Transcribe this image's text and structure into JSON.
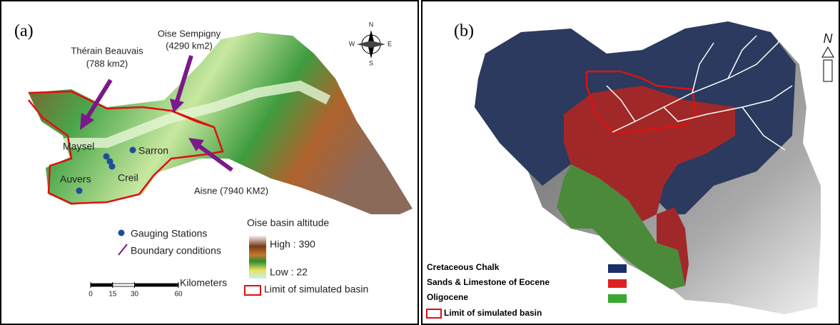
{
  "panel_a": {
    "label": "(a)",
    "compass": {
      "n": "N",
      "s": "S",
      "e": "E",
      "w": "W"
    },
    "callouts": [
      {
        "name": "Thérain Beauvais",
        "area": "(788 km2)"
      },
      {
        "name": "Oise Sempigny",
        "area": "(4290 km2)"
      },
      {
        "name": "Aisne (7940 KM2)"
      }
    ],
    "stations": [
      "Maysel",
      "Sarron",
      "Creil",
      "Auvers"
    ],
    "legend": {
      "gauging": "Gauging Stations",
      "boundary": "Boundary conditions",
      "altitude_title": "Oise basin altitude",
      "high": "High : 390",
      "low": "Low : 22",
      "limit": "Limit of simulated basin"
    },
    "scale": {
      "unit": "Kilometers",
      "ticks": [
        0,
        15,
        30,
        60
      ]
    }
  },
  "panel_b": {
    "label": "(b)",
    "north": "N",
    "legend": [
      "Cretaceous Chalk",
      "Sands & Limestone of Eocene",
      "Oligocene",
      "Limit of simulated basin"
    ]
  }
}
